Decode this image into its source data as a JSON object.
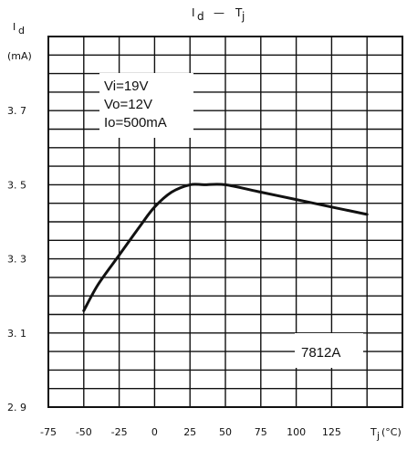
{
  "chart_data": {
    "type": "line",
    "title": "I_d — T_j",
    "ylabel": "I_d",
    "yunit": "(mA)",
    "xlabel": "T_j(°C)",
    "xlim": [
      -75,
      175
    ],
    "ylim": [
      2.9,
      3.9
    ],
    "x_ticks": [
      -75,
      -50,
      -25,
      0,
      25,
      50,
      75,
      100,
      125
    ],
    "x_tick_labels": [
      "-75",
      "-50",
      "-25",
      "0",
      "25",
      "50",
      "75",
      "100",
      "125"
    ],
    "y_ticks": [
      2.9,
      3.1,
      3.3,
      3.5,
      3.7
    ],
    "y_tick_labels": [
      "2. 9",
      "3. 1",
      "3. 3",
      "3. 5",
      "3. 7"
    ],
    "grid": true,
    "series": [
      {
        "x": [
          -50,
          -40,
          -25,
          -10,
          0,
          12,
          25,
          35,
          50,
          75,
          100,
          125,
          150
        ],
        "y": [
          3.16,
          3.23,
          3.31,
          3.39,
          3.44,
          3.48,
          3.5,
          3.5,
          3.5,
          3.48,
          3.46,
          3.44,
          3.42
        ]
      }
    ],
    "annotations": {
      "conditions": [
        "Vi=19V",
        "Vo=12V",
        "Io=500mA"
      ],
      "model": "7812A"
    }
  }
}
